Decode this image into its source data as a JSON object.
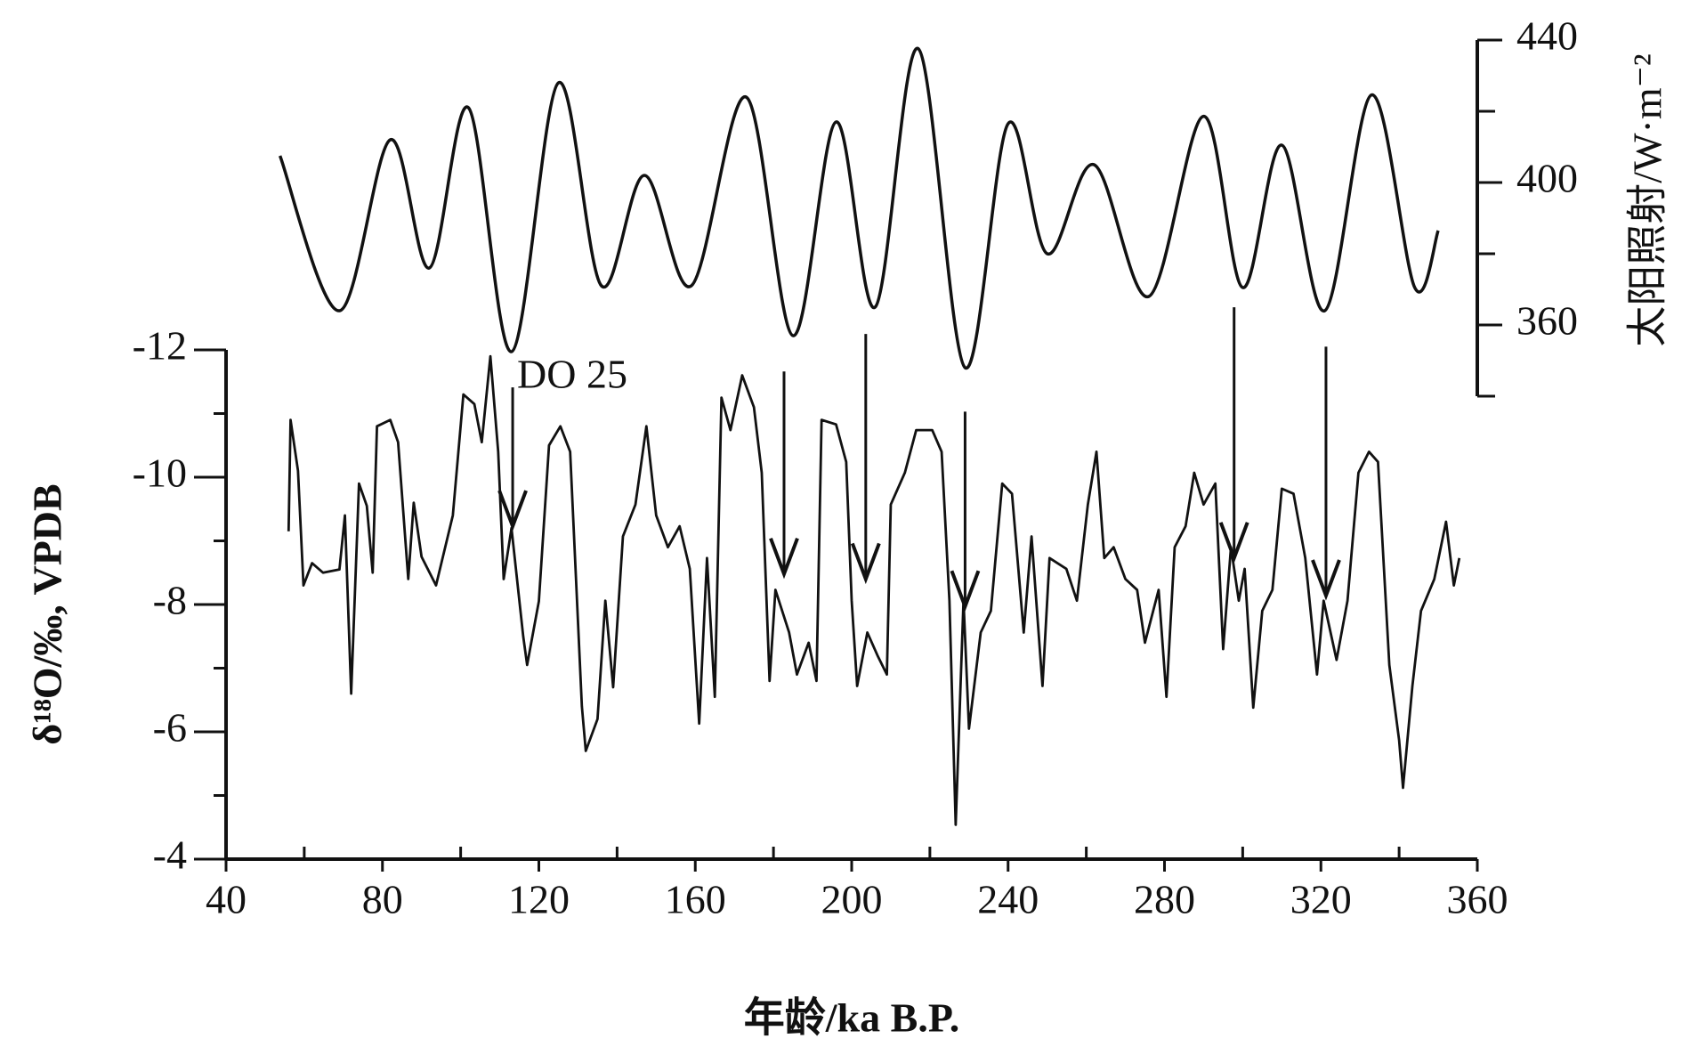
{
  "chart_data": {
    "type": "line",
    "xlabel": "年龄/ka B.P.",
    "ylabel": "δ¹⁸O/‰, VPDB",
    "y2label": "太阳照射/W·m⁻²",
    "xlim": [
      40,
      360
    ],
    "xticks": [
      40,
      80,
      120,
      160,
      200,
      240,
      280,
      320,
      360
    ],
    "xminor": [
      60,
      100,
      140,
      180,
      220,
      260,
      300,
      340
    ],
    "ylim": [
      -4,
      -12
    ],
    "yticks": [
      -12,
      -10,
      -8,
      -6,
      -4
    ],
    "yminor": [
      -11,
      -9,
      -7,
      -5
    ],
    "y2lim": [
      340,
      440
    ],
    "y2ticks": [
      360,
      400,
      440
    ],
    "y2minor": [
      340,
      380,
      420
    ],
    "series": [
      {
        "name": "δ18O",
        "color": "#111111",
        "x": [
          56,
          56.5,
          58.4,
          59.8,
          62,
          64.8,
          69,
          70.4,
          72,
          74,
          76,
          77.5,
          78.6,
          82,
          84,
          86.6,
          88,
          90,
          93.7,
          98,
          100.7,
          103.5,
          105.4,
          107.6,
          109.6,
          111,
          113,
          116,
          117,
          120,
          122.6,
          125.5,
          128,
          131,
          132,
          135,
          137,
          139,
          141.5,
          144.7,
          147.5,
          150,
          153,
          156,
          158.6,
          161,
          163,
          165,
          166.7,
          169,
          172,
          175,
          177,
          179,
          180.5,
          184,
          186,
          189,
          191,
          192.3,
          196,
          198.6,
          200,
          201.4,
          204,
          206.6,
          209,
          210,
          213.6,
          216.5,
          220.6,
          223,
          225,
          226.6,
          228.6,
          230,
          233,
          235.6,
          238.5,
          241,
          244,
          246,
          248.8,
          250.6,
          254.9,
          257.6,
          260.4,
          262.6,
          264.6,
          267,
          270,
          273,
          275,
          278.5,
          280.5,
          282.6,
          285.4,
          287.6,
          290,
          293,
          295,
          297,
          299,
          300.5,
          302.7,
          305,
          307.6,
          310,
          313,
          316,
          319,
          320.7,
          324,
          326.8,
          329.6,
          332.3,
          334.6,
          337.5,
          340,
          341,
          343.4,
          345.6,
          349,
          352,
          354,
          355.4
        ],
        "values": [
          -9.15,
          -10.9,
          -10.1,
          -8.3,
          -8.65,
          -8.5,
          -8.55,
          -9.4,
          -6.6,
          -9.9,
          -9.55,
          -8.5,
          -10.8,
          -10.9,
          -10.55,
          -8.4,
          -9.6,
          -8.75,
          -8.3,
          -9.4,
          -11.3,
          -11.15,
          -10.55,
          -11.9,
          -10.4,
          -8.4,
          -9.2,
          -7.5,
          -7.05,
          -8.05,
          -10.5,
          -10.8,
          -10.4,
          -6.4,
          -5.7,
          -6.2,
          -8.06,
          -6.7,
          -9.07,
          -9.57,
          -10.8,
          -9.4,
          -8.9,
          -9.23,
          -8.56,
          -6.13,
          -8.73,
          -6.55,
          -11.25,
          -10.74,
          -11.6,
          -11.1,
          -10.07,
          -6.8,
          -8.23,
          -7.56,
          -6.9,
          -7.4,
          -6.8,
          -10.9,
          -10.83,
          -10.24,
          -8.06,
          -6.72,
          -7.56,
          -7.2,
          -6.9,
          -9.57,
          -10.07,
          -10.74,
          -10.74,
          -10.4,
          -8.06,
          -4.54,
          -8.06,
          -6.05,
          -7.56,
          -7.9,
          -9.9,
          -9.74,
          -7.56,
          -9.07,
          -6.72,
          -8.73,
          -8.56,
          -8.06,
          -9.57,
          -10.4,
          -8.73,
          -8.9,
          -8.4,
          -8.23,
          -7.4,
          -8.23,
          -6.55,
          -8.9,
          -9.23,
          -10.07,
          -9.57,
          -9.9,
          -7.3,
          -8.9,
          -8.06,
          -8.56,
          -6.38,
          -7.9,
          -8.23,
          -9.82,
          -9.74,
          -8.73,
          -6.9,
          -8.06,
          -7.13,
          -8.06,
          -10.07,
          -10.4,
          -10.24,
          -7.05,
          -5.87,
          -5.12,
          -6.72,
          -7.9,
          -8.4,
          -9.3,
          -8.3,
          -8.73
        ]
      },
      {
        "name": "太阳照射",
        "color": "#111111",
        "axis": "y2",
        "smooth": true,
        "x": [
          53.8,
          69,
          82,
          92,
          102,
          113,
          125,
          136,
          147,
          159,
          173,
          185,
          196,
          206,
          217,
          229,
          240,
          250,
          262,
          276,
          290,
          300,
          310,
          321,
          333,
          344,
          350
        ],
        "values": [
          407.5,
          364,
          412,
          376,
          421,
          352.5,
          428,
          371,
          402,
          371,
          424,
          357,
          417,
          365,
          437.6,
          348,
          416.5,
          380,
          405,
          368,
          418.6,
          370.5,
          410.5,
          364,
          424.6,
          370.5,
          386.5
        ]
      }
    ],
    "arrows": [
      {
        "x": 113.3,
        "from": -11.41,
        "to": -9.23,
        "label": "DO 25"
      },
      {
        "x": 182.7,
        "from": -11.66,
        "to": -8.48
      },
      {
        "x": 203.6,
        "from": -12.25,
        "to": -8.4
      },
      {
        "x": 229,
        "from": -11.03,
        "to": -7.97
      },
      {
        "x": 297.8,
        "from": -12.67,
        "to": -8.73
      },
      {
        "x": 321.3,
        "from": -12.05,
        "to": -8.14
      }
    ]
  }
}
